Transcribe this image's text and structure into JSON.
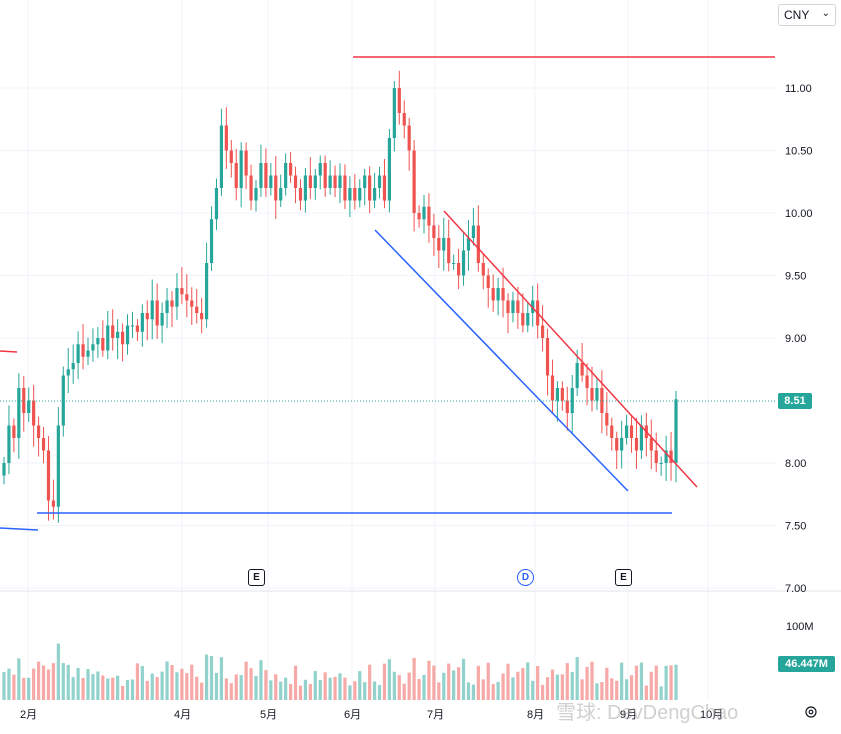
{
  "currency_selector": {
    "value": "CNY",
    "chevron": "chevron-down-icon"
  },
  "last_price_label": "8.51",
  "volume_label": "46.447M",
  "volume_axis_label": "100M",
  "events": [
    {
      "type": "earnings",
      "label": "E",
      "x_date": "2024-04-29"
    },
    {
      "type": "dividend",
      "label": "D",
      "x_date": "2024-07-31"
    },
    {
      "type": "earnings",
      "label": "E",
      "x_date": "2024-08-29"
    }
  ],
  "watermark": "雪球: DevDengChao",
  "colors": {
    "up": "#26a69a",
    "down": "#ef5350",
    "support": "#2962ff",
    "resistance": "#f23645",
    "grid": "#f0f3fa"
  },
  "chart_data": {
    "type": "candlestick",
    "y_axis": {
      "ticks": [
        "11.00",
        "10.50",
        "10.00",
        "9.50",
        "9.00",
        "8.00",
        "7.50",
        "7.00"
      ],
      "range": [
        7.0,
        11.4
      ]
    },
    "x_axis": {
      "labels": [
        "2月",
        "4月",
        "5月",
        "6月",
        "7月",
        "8月",
        "9月",
        "10月"
      ]
    },
    "last_price": 8.51,
    "annotations": [
      {
        "kind": "horizontal",
        "name": "resistance-top",
        "y": 11.25,
        "color": "#f23645"
      },
      {
        "kind": "horizontal",
        "name": "support-bottom",
        "y": 7.6,
        "color": "#2962ff"
      },
      {
        "kind": "trend",
        "name": "channel-upper",
        "from": [
          "2024-07-07",
          10.02
        ],
        "to": [
          "2024-10-01",
          7.8
        ],
        "color": "#f23645"
      },
      {
        "kind": "trend",
        "name": "channel-lower",
        "from": [
          "2024-06-08",
          9.86
        ],
        "to": [
          "2024-09-01",
          7.77
        ],
        "color": "#2962ff"
      }
    ],
    "candles_close": [
      8.0,
      8.3,
      8.2,
      8.6,
      8.4,
      8.5,
      8.3,
      8.2,
      8.1,
      7.7,
      7.65,
      8.3,
      8.7,
      8.75,
      8.8,
      8.95,
      8.85,
      8.9,
      8.95,
      9.0,
      8.9,
      9.1,
      9.0,
      9.05,
      8.95,
      9.1,
      9.1,
      9.05,
      9.2,
      9.15,
      9.3,
      9.1,
      9.2,
      9.3,
      9.25,
      9.4,
      9.35,
      9.3,
      9.25,
      9.2,
      9.15,
      9.6,
      9.95,
      10.2,
      10.7,
      10.5,
      10.4,
      10.2,
      10.5,
      10.3,
      10.1,
      10.2,
      10.4,
      10.2,
      10.3,
      10.1,
      10.2,
      10.4,
      10.3,
      10.2,
      10.1,
      10.3,
      10.2,
      10.3,
      10.4,
      10.2,
      10.3,
      10.2,
      10.3,
      10.1,
      10.2,
      10.1,
      10.2,
      10.3,
      10.1,
      10.2,
      10.3,
      10.1,
      10.6,
      11.0,
      10.8,
      10.7,
      10.5,
      10.0,
      9.95,
      10.05,
      9.9,
      9.8,
      9.7,
      9.8,
      9.6,
      9.6,
      9.5,
      9.7,
      9.8,
      9.9,
      9.6,
      9.5,
      9.4,
      9.3,
      9.4,
      9.3,
      9.2,
      9.3,
      9.2,
      9.1,
      9.2,
      9.3,
      9.1,
      9.0,
      8.7,
      8.5,
      8.6,
      8.5,
      8.4,
      8.6,
      8.8,
      8.7,
      8.6,
      8.5,
      8.6,
      8.4,
      8.3,
      8.2,
      8.1,
      8.2,
      8.3,
      8.2,
      8.1,
      8.3,
      8.2,
      8.1,
      8.0,
      8.0,
      8.1,
      8.0,
      8.51
    ],
    "volume_axis": {
      "ticks": [
        "100M"
      ]
    },
    "last_volume_M": 46.447
  }
}
